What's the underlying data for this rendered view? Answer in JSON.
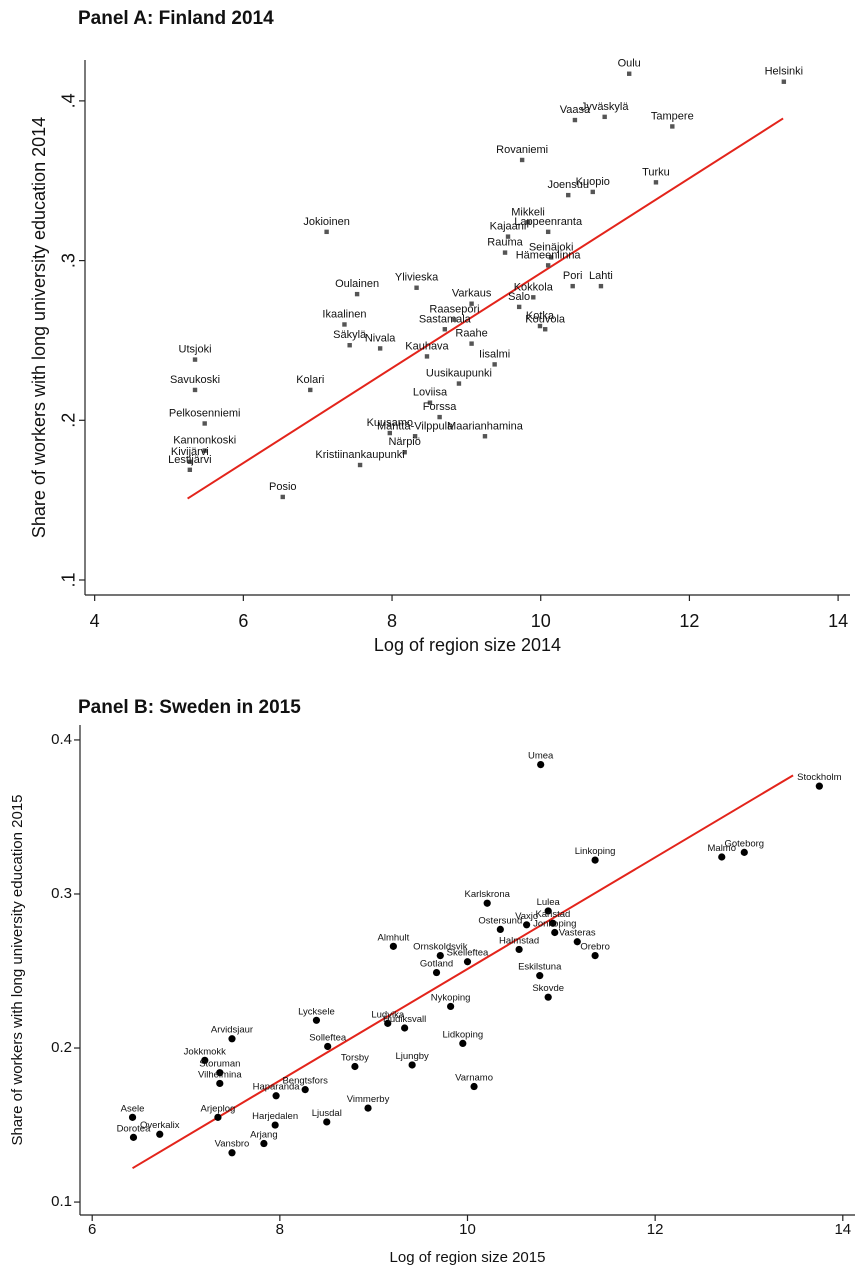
{
  "chart_data": [
    {
      "type": "scatter",
      "title": "Panel A: Finland 2014",
      "x_label": "Log of region size 2014",
      "y_label": "Share of workers with long university education 2014",
      "marker": "square",
      "color": "#555555",
      "labels": [
        "Oulu",
        "Helsinki",
        "Vaasa",
        "Jyväskylä",
        "Tampere",
        "Rovaniemi",
        "Turku",
        "Joensuu",
        "Kuopio",
        "Jokioinen",
        "Mikkeli",
        "Lappeenranta",
        "Kajaani",
        "Rauma",
        "Seinäjoki",
        "Hämeenlinna",
        "Pori",
        "Lahti",
        "Ylivieska",
        "Oulainen",
        "Varkaus",
        "Kokkola",
        "Salo",
        "Ikaalinen",
        "Sastamala",
        "Kotka",
        "Kouvola",
        "Raasepori",
        "Raahe",
        "Säkylä",
        "Nivala",
        "Kauhava",
        "Iisalmi",
        "Uusikaupunki",
        "Utsjoki",
        "Savukoski",
        "Pelkosenniemi",
        "Kannonkoski",
        "Kivijärvi",
        "Lestijärvi",
        "Kolari",
        "Loviisa",
        "Forssa",
        "Mänttä-Vilppula",
        "Närpiö",
        "Kristiinankaupunki",
        "Maarianhamina",
        "Posio",
        "Kuusamo"
      ],
      "x": [
        11.19,
        13.27,
        10.46,
        10.86,
        11.77,
        9.75,
        11.55,
        10.37,
        10.7,
        7.12,
        9.83,
        10.1,
        9.56,
        9.52,
        10.14,
        10.1,
        10.43,
        10.81,
        8.33,
        7.53,
        9.07,
        9.9,
        9.71,
        7.36,
        8.71,
        9.99,
        10.06,
        8.84,
        9.07,
        7.43,
        7.84,
        8.47,
        9.38,
        8.9,
        5.35,
        5.35,
        5.48,
        5.48,
        5.28,
        5.28,
        6.9,
        8.51,
        8.64,
        8.31,
        8.17,
        7.57,
        9.25,
        6.53,
        7.97
      ],
      "values": [
        0.417,
        0.412,
        0.388,
        0.39,
        0.384,
        0.363,
        0.349,
        0.341,
        0.343,
        0.318,
        0.324,
        0.318,
        0.315,
        0.305,
        0.302,
        0.297,
        0.284,
        0.284,
        0.283,
        0.279,
        0.273,
        0.277,
        0.271,
        0.26,
        0.257,
        0.259,
        0.257,
        0.263,
        0.248,
        0.247,
        0.245,
        0.24,
        0.235,
        0.223,
        0.238,
        0.219,
        0.198,
        0.181,
        0.174,
        0.169,
        0.219,
        0.211,
        0.202,
        0.19,
        0.18,
        0.172,
        0.19,
        0.152,
        0.192
      ],
      "fit": {
        "x": [
          5.25,
          13.26
        ],
        "values": [
          0.151,
          0.389
        ],
        "color": "#e3241b"
      },
      "xlim": [
        3.87,
        14.16
      ],
      "ylim": [
        0.0906,
        0.4256
      ],
      "xticks": [
        4,
        6,
        8,
        10,
        12,
        14
      ],
      "yticks": [
        {
          "value": 0.1,
          "label": ".1"
        },
        {
          "value": 0.2,
          "label": ".2"
        },
        {
          "value": 0.3,
          "label": ".3"
        },
        {
          "value": 0.4,
          "label": ".4"
        }
      ]
    },
    {
      "type": "scatter",
      "title": "Panel B: Sweden in 2015",
      "x_label": "Log of region size 2015",
      "y_label": "Share of workers with long university education 2015",
      "marker": "circle",
      "color": "#000000",
      "labels": [
        "Umea",
        "Stockholm",
        "Linkoping",
        "Malmo",
        "Goteborg",
        "Karlskrona",
        "Lulea",
        "Karlstad",
        "Vaxjo",
        "Ostersund",
        "Jonkoping",
        "Vasteras",
        "Orebro",
        "Halmstad",
        "Almhult",
        "Ornskoldsvik",
        "Skelleftea",
        "Gotland",
        "Eskilstuna",
        "Skovde",
        "Nykoping",
        "Lycksele",
        "Ludvika",
        "Solleftea",
        "Lidkoping",
        "Hudiksvall",
        "Ljungby",
        "Arvidsjaur",
        "Jokkmokk",
        "Storuman",
        "Vilhelmina",
        "Varnamo",
        "Haparanda",
        "Asele",
        "Overkalix",
        "Dorotea",
        "Arjeplog",
        "Vansbro",
        "Harjedalen",
        "Arjang",
        "Ljusdal",
        "Bengtsfors",
        "Torsby",
        "Vimmerby"
      ],
      "x": [
        10.78,
        13.75,
        11.36,
        12.71,
        12.95,
        10.21,
        10.86,
        10.91,
        10.63,
        10.35,
        10.93,
        11.17,
        11.36,
        10.55,
        9.21,
        9.71,
        10.0,
        9.67,
        10.77,
        10.86,
        9.82,
        8.39,
        9.15,
        8.51,
        9.95,
        9.33,
        9.41,
        7.49,
        7.2,
        7.36,
        7.36,
        10.07,
        7.96,
        6.43,
        6.72,
        6.44,
        7.34,
        7.49,
        7.95,
        7.83,
        8.5,
        8.27,
        8.8,
        8.94
      ],
      "values": [
        0.384,
        0.37,
        0.322,
        0.324,
        0.327,
        0.294,
        0.289,
        0.281,
        0.28,
        0.277,
        0.275,
        0.269,
        0.26,
        0.264,
        0.266,
        0.26,
        0.256,
        0.249,
        0.247,
        0.233,
        0.227,
        0.218,
        0.216,
        0.201,
        0.203,
        0.213,
        0.189,
        0.206,
        0.192,
        0.184,
        0.177,
        0.175,
        0.169,
        0.155,
        0.144,
        0.142,
        0.155,
        0.132,
        0.15,
        0.138,
        0.152,
        0.173,
        0.188,
        0.161
      ],
      "fit": {
        "x": [
          6.43,
          13.47
        ],
        "values": [
          0.122,
          0.377
        ],
        "color": "#e3241b"
      },
      "xlim": [
        5.87,
        14.13
      ],
      "ylim": [
        0.0916,
        0.4097
      ],
      "xticks": [
        6,
        8,
        10,
        12,
        14
      ],
      "yticks": [
        0.1,
        0.2,
        0.3,
        0.4
      ]
    }
  ]
}
